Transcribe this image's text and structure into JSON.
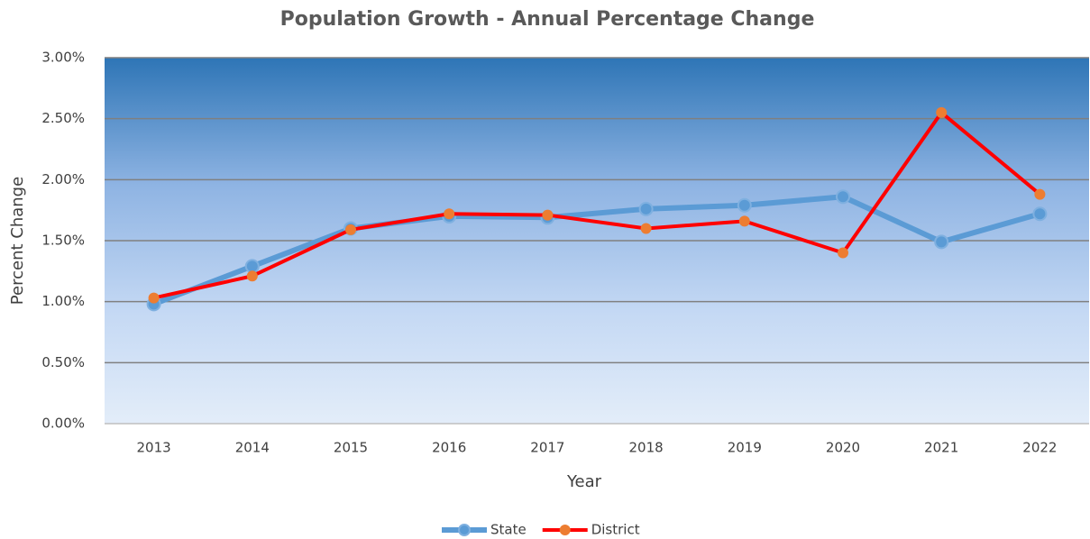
{
  "chart_data": {
    "type": "line",
    "title": "Population Growth - Annual Percentage Change",
    "x_label": "Year",
    "y_label": "Percent Change",
    "categories": [
      "2013",
      "2014",
      "2015",
      "2016",
      "2017",
      "2018",
      "2019",
      "2020",
      "2021",
      "2022"
    ],
    "series": [
      {
        "name": "State",
        "color": "#5b9bd5",
        "values": [
          0.98,
          1.29,
          1.6,
          1.7,
          1.69,
          1.76,
          1.79,
          1.86,
          1.49,
          1.72
        ]
      },
      {
        "name": "District",
        "color": "#ff0000",
        "marker_color": "#ed7d31",
        "values": [
          1.03,
          1.21,
          1.59,
          1.72,
          1.71,
          1.6,
          1.66,
          1.4,
          2.55,
          1.88
        ]
      }
    ],
    "ylim": [
      0,
      3
    ],
    "yticks": [
      {
        "value": 0,
        "label": "0.00%"
      },
      {
        "value": 0.5,
        "label": "0.50%"
      },
      {
        "value": 1,
        "label": "1.00%"
      },
      {
        "value": 1.5,
        "label": "1.50%"
      },
      {
        "value": 2,
        "label": "2.00%"
      },
      {
        "value": 2.5,
        "label": "2.50%"
      },
      {
        "value": 3,
        "label": "3.00%"
      }
    ],
    "grid": true,
    "legend": "bottom"
  }
}
